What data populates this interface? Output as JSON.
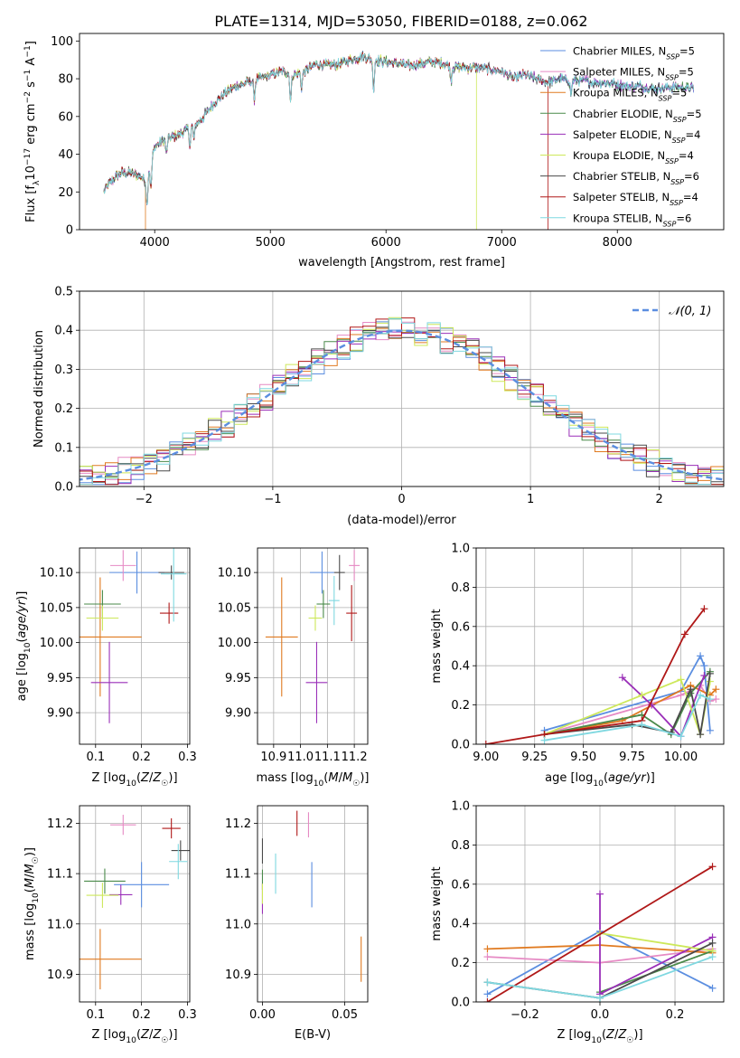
{
  "title": "PLATE=1314, MJD=53050, FIBERID=0188, z=0.062",
  "colors": {
    "Chabrier MILES": "#5b8ee0",
    "Salpeter MILES": "#e68ac4",
    "Kroupa MILES": "#e07a20",
    "Chabrier ELODIE": "#4a8a4a",
    "Salpeter ELODIE": "#9a2fb8",
    "Kroupa ELODIE": "#cde85a",
    "Chabrier STELIB": "#4a4a4a",
    "Salpeter STELIB": "#b01818",
    "Kroupa STELIB": "#7fd8e0"
  },
  "chart_data": [
    {
      "id": "spectrum",
      "type": "line",
      "xlabel": "wavelength [Angstrom, rest frame]",
      "ylabel": "Flux [f",
      "ylabel_parts": [
        "Flux [f",
        "λ",
        "10",
        "−17",
        " erg cm",
        "−2",
        " s",
        "−1",
        " A",
        "−1",
        "]"
      ],
      "xlim": [
        3350,
        8920
      ],
      "ylim": [
        0,
        104
      ],
      "xticks": [
        4000,
        5000,
        6000,
        7000,
        8000
      ],
      "yticks": [
        0,
        20,
        40,
        60,
        80,
        100
      ],
      "continuum": [
        [
          3560,
          20
        ],
        [
          3600,
          24
        ],
        [
          3700,
          30
        ],
        [
          3800,
          30
        ],
        [
          3880,
          28
        ],
        [
          3920,
          26
        ],
        [
          3960,
          34
        ],
        [
          4000,
          44
        ],
        [
          4100,
          48
        ],
        [
          4200,
          50
        ],
        [
          4300,
          54
        ],
        [
          4400,
          58
        ],
        [
          4500,
          66
        ],
        [
          4600,
          72
        ],
        [
          4700,
          76
        ],
        [
          4800,
          78
        ],
        [
          4900,
          80
        ],
        [
          5000,
          82
        ],
        [
          5100,
          84
        ],
        [
          5200,
          82
        ],
        [
          5300,
          84
        ],
        [
          5400,
          88
        ],
        [
          5500,
          87
        ],
        [
          5600,
          88
        ],
        [
          5700,
          90
        ],
        [
          5800,
          92
        ],
        [
          5900,
          90
        ],
        [
          6000,
          89
        ],
        [
          6100,
          88
        ],
        [
          6200,
          87
        ],
        [
          6300,
          88
        ],
        [
          6400,
          89
        ],
        [
          6500,
          88
        ],
        [
          6600,
          86
        ],
        [
          6700,
          86
        ],
        [
          6800,
          86
        ],
        [
          6900,
          85
        ],
        [
          7000,
          84
        ],
        [
          7100,
          80
        ],
        [
          7200,
          82
        ],
        [
          7300,
          80
        ],
        [
          7400,
          78
        ],
        [
          7500,
          80
        ],
        [
          7600,
          79
        ],
        [
          7700,
          79
        ],
        [
          7800,
          78
        ],
        [
          7900,
          78
        ],
        [
          8000,
          77
        ],
        [
          8100,
          76
        ],
        [
          8200,
          76
        ],
        [
          8300,
          75
        ],
        [
          8400,
          75
        ],
        [
          8500,
          76
        ],
        [
          8600,
          75
        ],
        [
          8660,
          75
        ]
      ],
      "absorption_lines": [
        [
          3934,
          16
        ],
        [
          3968,
          14
        ],
        [
          4102,
          8
        ],
        [
          4305,
          10
        ],
        [
          4340,
          8
        ],
        [
          4861,
          10
        ],
        [
          5175,
          14
        ],
        [
          5270,
          8
        ],
        [
          5893,
          16
        ],
        [
          6563,
          8
        ],
        [
          7600,
          8
        ]
      ],
      "truncations": [
        {
          "model": "Kroupa MILES",
          "x_end": 3920
        },
        {
          "model": "Kroupa ELODIE",
          "x_end": 6780
        },
        {
          "model": "Salpeter STELIB",
          "x_end": 7400
        },
        {
          "model": "Kroupa MILES",
          "x_end": 7410
        }
      ],
      "legend_position": "upper right",
      "legend": [
        {
          "name": "Chabrier MILES",
          "nssp": "5"
        },
        {
          "name": "Salpeter MILES",
          "nssp": "5"
        },
        {
          "name": "Kroupa MILES",
          "nssp": "5"
        },
        {
          "name": "Chabrier ELODIE",
          "nssp": "5"
        },
        {
          "name": "Salpeter ELODIE",
          "nssp": "4"
        },
        {
          "name": "Kroupa ELODIE",
          "nssp": "4"
        },
        {
          "name": "Chabrier STELIB",
          "nssp": "6"
        },
        {
          "name": "Salpeter STELIB",
          "nssp": "4"
        },
        {
          "name": "Kroupa STELIB",
          "nssp": "6"
        }
      ],
      "legend_suffix": "SSP"
    },
    {
      "id": "residuals",
      "type": "area",
      "xlabel": "(data-model)/error",
      "ylabel": "Normed distribution",
      "xlim": [
        -2.5,
        2.5
      ],
      "ylim": [
        0,
        0.5
      ],
      "xticks": [
        -2,
        -1,
        0,
        1,
        2
      ],
      "yticks": [
        0.0,
        0.1,
        0.2,
        0.3,
        0.4,
        0.5
      ],
      "grid": true,
      "bin_width": 0.1,
      "reference_curve": "N(0,1)",
      "legend_label": "𝒩(0, 1)",
      "legend_position": "upper right"
    },
    {
      "id": "age_vs_Z",
      "type": "scatter",
      "xlabel": "Z [log10(Z/Z☉)]",
      "ylabel": "age  [log10(age/yr)]",
      "xlim": [
        0.065,
        0.305
      ],
      "ylim": [
        9.855,
        10.135
      ],
      "xticks": [
        0.1,
        0.2,
        0.3
      ],
      "yticks": [
        9.9,
        9.95,
        10.0,
        10.05,
        10.1
      ],
      "grid": true,
      "points": [
        {
          "model": "Chabrier MILES",
          "x": 0.19,
          "y": 10.1,
          "xerr": 0.06,
          "yerr": 0.03
        },
        {
          "model": "Salpeter MILES",
          "x": 0.16,
          "y": 10.11,
          "xerr": 0.028,
          "yerr": 0.022
        },
        {
          "model": "Kroupa MILES",
          "x": 0.11,
          "y": 10.008,
          "xerr": 0.09,
          "yerr": 0.085
        },
        {
          "model": "Chabrier ELODIE",
          "x": 0.115,
          "y": 10.055,
          "xerr": 0.04,
          "yerr": 0.02
        },
        {
          "model": "Salpeter ELODIE",
          "x": 0.13,
          "y": 9.943,
          "xerr": 0.04,
          "yerr": 0.058
        },
        {
          "model": "Kroupa ELODIE",
          "x": 0.115,
          "y": 10.035,
          "xerr": 0.035,
          "yerr": 0.018
        },
        {
          "model": "Chabrier STELIB",
          "x": 0.265,
          "y": 10.1,
          "xerr": 0.028,
          "yerr": 0.01
        },
        {
          "model": "Salpeter STELIB",
          "x": 0.26,
          "y": 10.042,
          "xerr": 0.02,
          "yerr": 0.015
        },
        {
          "model": "Kroupa STELIB",
          "x": 0.27,
          "y": 10.098,
          "xerr": 0.028,
          "yerr": 0.068
        }
      ]
    },
    {
      "id": "age_vs_mass",
      "type": "scatter",
      "xlabel": "mass [log10(M/M☉)]",
      "ylabel": "",
      "xlim": [
        10.84,
        11.25
      ],
      "ylim": [
        9.855,
        10.135
      ],
      "xticks": [
        10.9,
        11.0,
        11.1,
        11.2
      ],
      "yticks": [
        9.9,
        9.95,
        10.0,
        10.05,
        10.1
      ],
      "grid": true,
      "points": [
        {
          "model": "Chabrier MILES",
          "x": 11.08,
          "y": 10.1,
          "xerr": 0.045,
          "yerr": 0.03
        },
        {
          "model": "Salpeter MILES",
          "x": 11.2,
          "y": 10.11,
          "xerr": 0.02,
          "yerr": 0.022
        },
        {
          "model": "Kroupa MILES",
          "x": 10.93,
          "y": 10.008,
          "xerr": 0.06,
          "yerr": 0.085
        },
        {
          "model": "Chabrier ELODIE",
          "x": 11.085,
          "y": 10.055,
          "xerr": 0.025,
          "yerr": 0.02
        },
        {
          "model": "Salpeter ELODIE",
          "x": 11.06,
          "y": 9.943,
          "xerr": 0.04,
          "yerr": 0.058
        },
        {
          "model": "Kroupa ELODIE",
          "x": 11.055,
          "y": 10.035,
          "xerr": 0.025,
          "yerr": 0.018
        },
        {
          "model": "Chabrier STELIB",
          "x": 11.145,
          "y": 10.1,
          "xerr": 0.02,
          "yerr": 0.025
        },
        {
          "model": "Salpeter STELIB",
          "x": 11.19,
          "y": 10.042,
          "xerr": 0.02,
          "yerr": 0.04
        },
        {
          "model": "Kroupa STELIB",
          "x": 11.125,
          "y": 10.06,
          "xerr": 0.02,
          "yerr": 0.035
        }
      ]
    },
    {
      "id": "weight_vs_age",
      "type": "line",
      "xlabel": "age  [log10(age/yr)]",
      "ylabel": "mass weight",
      "xlim": [
        8.95,
        10.22
      ],
      "ylim": [
        0,
        1
      ],
      "xticks": [
        9.0,
        9.25,
        9.5,
        9.75,
        10.0
      ],
      "xticklabels": [
        "9.00",
        "9.25",
        "9.50",
        "9.75",
        "10.00"
      ],
      "yticks": [
        0,
        0.2,
        0.4,
        0.6,
        0.8,
        1.0
      ],
      "grid": true,
      "series": [
        {
          "model": "Chabrier MILES",
          "x": [
            9.3,
            10.0,
            10.1,
            10.12,
            10.15
          ],
          "y": [
            0.07,
            0.27,
            0.45,
            0.4,
            0.07
          ]
        },
        {
          "model": "Salpeter MILES",
          "x": [
            9.3,
            10.0,
            10.1,
            10.15,
            10.18
          ],
          "y": [
            0.05,
            0.25,
            0.3,
            0.22,
            0.23
          ]
        },
        {
          "model": "Kroupa MILES",
          "x": [
            9.3,
            9.7,
            10.05,
            10.15,
            10.18
          ],
          "y": [
            0.05,
            0.12,
            0.3,
            0.25,
            0.28
          ]
        },
        {
          "model": "Chabrier ELODIE",
          "x": [
            9.3,
            9.8,
            9.95,
            10.05,
            10.15
          ],
          "y": [
            0.05,
            0.15,
            0.05,
            0.26,
            0.37
          ]
        },
        {
          "model": "Salpeter ELODIE",
          "x": [
            9.7,
            9.85,
            10.0,
            10.12
          ],
          "y": [
            0.34,
            0.2,
            0.04,
            0.35
          ]
        },
        {
          "model": "Kroupa ELODIE",
          "x": [
            9.3,
            9.8,
            10.0,
            10.1,
            10.15
          ],
          "y": [
            0.05,
            0.25,
            0.33,
            0.05,
            0.32
          ]
        },
        {
          "model": "Chabrier STELIB",
          "x": [
            9.3,
            9.75,
            9.95,
            10.05,
            10.1,
            10.15
          ],
          "y": [
            0.05,
            0.1,
            0.06,
            0.28,
            0.05,
            0.36
          ]
        },
        {
          "model": "Salpeter STELIB",
          "x": [
            9.0,
            9.3,
            9.8,
            10.02,
            10.12
          ],
          "y": [
            0.0,
            0.05,
            0.12,
            0.56,
            0.69
          ]
        },
        {
          "model": "Kroupa STELIB",
          "x": [
            9.3,
            9.8,
            10.0,
            10.1,
            10.15
          ],
          "y": [
            0.02,
            0.1,
            0.04,
            0.25,
            0.23
          ]
        }
      ]
    },
    {
      "id": "mass_vs_Z",
      "type": "scatter",
      "xlabel": "Z [log10(Z/Z☉)]",
      "ylabel": "mass [log10(M/M☉)]",
      "xlim": [
        0.065,
        0.305
      ],
      "ylim": [
        10.845,
        11.235
      ],
      "xticks": [
        0.1,
        0.2,
        0.3
      ],
      "yticks": [
        10.9,
        11.0,
        11.1,
        11.2
      ],
      "grid": true,
      "points": [
        {
          "model": "Chabrier MILES",
          "x": 0.2,
          "y": 11.078,
          "xerr": 0.06,
          "yerr": 0.045
        },
        {
          "model": "Salpeter MILES",
          "x": 0.16,
          "y": 11.197,
          "xerr": 0.028,
          "yerr": 0.02
        },
        {
          "model": "Kroupa MILES",
          "x": 0.11,
          "y": 10.93,
          "xerr": 0.09,
          "yerr": 0.06
        },
        {
          "model": "Chabrier ELODIE",
          "x": 0.12,
          "y": 11.085,
          "xerr": 0.045,
          "yerr": 0.025
        },
        {
          "model": "Salpeter ELODIE",
          "x": 0.155,
          "y": 11.058,
          "xerr": 0.025,
          "yerr": 0.02
        },
        {
          "model": "Kroupa ELODIE",
          "x": 0.115,
          "y": 11.057,
          "xerr": 0.035,
          "yerr": 0.025
        },
        {
          "model": "Chabrier STELIB",
          "x": 0.285,
          "y": 11.146,
          "xerr": 0.02,
          "yerr": 0.02
        },
        {
          "model": "Salpeter STELIB",
          "x": 0.265,
          "y": 11.19,
          "xerr": 0.02,
          "yerr": 0.02
        },
        {
          "model": "Kroupa STELIB",
          "x": 0.28,
          "y": 11.124,
          "xerr": 0.02,
          "yerr": 0.035
        }
      ]
    },
    {
      "id": "mass_vs_EBV",
      "type": "scatter",
      "xlabel": "E(B-V)",
      "ylabel": "",
      "xlim": [
        -0.003,
        0.064
      ],
      "ylim": [
        10.845,
        11.235
      ],
      "xticks": [
        0.0,
        0.05
      ],
      "xticklabels": [
        "0.00",
        "0.05"
      ],
      "yticks": [
        10.9,
        11.0,
        11.1,
        11.2
      ],
      "grid": true,
      "points": [
        {
          "model": "Chabrier MILES",
          "x": 0.03,
          "y": 11.078,
          "yerr": 0.045
        },
        {
          "model": "Salpeter MILES",
          "x": 0.028,
          "y": 11.197,
          "yerr": 0.025
        },
        {
          "model": "Kroupa MILES",
          "x": 0.06,
          "y": 10.93,
          "yerr": 0.045
        },
        {
          "model": "Chabrier ELODIE",
          "x": 0.0,
          "y": 11.088,
          "yerr": 0.02
        },
        {
          "model": "Salpeter ELODIE",
          "x": 0.0,
          "y": 11.05,
          "yerr": 0.03
        },
        {
          "model": "Kroupa ELODIE",
          "x": 0.0,
          "y": 11.06,
          "yerr": 0.02
        },
        {
          "model": "Chabrier STELIB",
          "x": 0.0,
          "y": 11.145,
          "yerr": 0.025
        },
        {
          "model": "Salpeter STELIB",
          "x": 0.021,
          "y": 11.2,
          "yerr": 0.025
        },
        {
          "model": "Kroupa STELIB",
          "x": 0.008,
          "y": 11.1,
          "yerr": 0.04
        }
      ]
    },
    {
      "id": "weight_vs_Z",
      "type": "line",
      "xlabel": "Z [log10(Z/Z☉)]",
      "ylabel": "mass weight",
      "xlim": [
        -0.33,
        0.33
      ],
      "ylim": [
        0,
        1
      ],
      "xticks": [
        -0.2,
        0.0,
        0.2
      ],
      "xticklabels": [
        "−0.2",
        "0.0",
        "0.2"
      ],
      "yticks": [
        0,
        0.2,
        0.4,
        0.6,
        0.8,
        1.0
      ],
      "grid": true,
      "series": [
        {
          "model": "Chabrier MILES",
          "x": [
            -0.3,
            0.0,
            0.3
          ],
          "y": [
            0.04,
            0.36,
            0.07
          ]
        },
        {
          "model": "Salpeter MILES",
          "x": [
            -0.3,
            0.0,
            0.3
          ],
          "y": [
            0.23,
            0.2,
            0.27
          ]
        },
        {
          "model": "Kroupa MILES",
          "x": [
            -0.3,
            0.0,
            0.3
          ],
          "y": [
            0.27,
            0.29,
            0.25
          ]
        },
        {
          "model": "Chabrier ELODIE",
          "x": [
            0.0,
            0.3
          ],
          "y": [
            0.05,
            0.26
          ]
        },
        {
          "model": "Salpeter ELODIE",
          "x": [
            0.0,
            0.0,
            0.3
          ],
          "y": [
            0.55,
            0.04,
            0.33
          ]
        },
        {
          "model": "Kroupa ELODIE",
          "x": [
            0.0,
            0.3
          ],
          "y": [
            0.35,
            0.26
          ]
        },
        {
          "model": "Chabrier STELIB",
          "x": [
            -0.3,
            0.0,
            0.3
          ],
          "y": [
            0.1,
            0.02,
            0.3
          ]
        },
        {
          "model": "Salpeter STELIB",
          "x": [
            -0.3,
            0.3
          ],
          "y": [
            0.0,
            0.69
          ]
        },
        {
          "model": "Kroupa STELIB",
          "x": [
            -0.3,
            0.0,
            0.3
          ],
          "y": [
            0.1,
            0.02,
            0.23
          ]
        }
      ]
    }
  ]
}
